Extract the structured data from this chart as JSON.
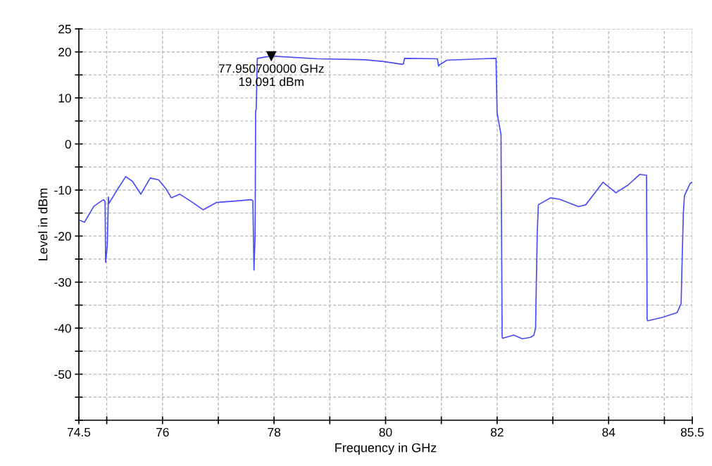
{
  "chart_data": {
    "type": "line",
    "xlabel": "Frequency in GHz",
    "ylabel": "Level in dBm",
    "x": [
      74.5,
      74.6,
      74.77,
      74.94,
      74.97,
      74.98,
      75.01,
      75.03,
      75.04,
      75.2,
      75.34,
      75.46,
      75.61,
      75.78,
      75.93,
      76.06,
      76.16,
      76.31,
      76.54,
      76.73,
      76.97,
      77.3,
      77.59,
      77.62,
      77.64,
      77.66,
      77.67,
      77.68,
      77.7,
      77.9507,
      78.78,
      79.63,
      79.96,
      80.3,
      80.32,
      80.34,
      80.93,
      80.95,
      80.97,
      81.1,
      81.73,
      81.98,
      82.0,
      82.07,
      82.09,
      82.1,
      82.3,
      82.45,
      82.6,
      82.66,
      82.69,
      82.7,
      82.72,
      82.74,
      82.96,
      83.12,
      83.46,
      83.59,
      83.9,
      84.13,
      84.35,
      84.56,
      84.68,
      84.69,
      84.7,
      84.98,
      85.23,
      85.3,
      85.32,
      85.34,
      85.36,
      85.46,
      85.5
    ],
    "series": [
      {
        "color": "#4a4cf5",
        "values": [
          -16.5,
          -17,
          -13.5,
          -12.1,
          -12.5,
          -25.7,
          -22,
          -11.5,
          -12.9,
          -9.7,
          -7.1,
          -8.1,
          -10.9,
          -7.4,
          -7.8,
          -9.7,
          -11.7,
          -10.9,
          -12.7,
          -14.3,
          -12.7,
          -12.4,
          -12.1,
          -12.3,
          -27.4,
          -20,
          7.2,
          7.5,
          18.6,
          19.091,
          18.5,
          18.3,
          17.9,
          17.3,
          17.4,
          18.6,
          18.5,
          16.9,
          17.2,
          18.2,
          18.5,
          18.6,
          6.7,
          2.1,
          -41.9,
          -42.2,
          -41.5,
          -42.3,
          -42,
          -41.5,
          -40,
          -32.6,
          -19.3,
          -13.2,
          -11.7,
          -12,
          -13.6,
          -13.2,
          -8.3,
          -10.6,
          -8.9,
          -6.6,
          -6.8,
          -38.1,
          -38.4,
          -37.6,
          -36.6,
          -34.6,
          -24.3,
          -15,
          -11.2,
          -8.6,
          -8.3
        ]
      }
    ],
    "xlim": [
      74.5,
      85.5
    ],
    "xticks": [
      74.5,
      {
        "value": 75,
        "label": null
      },
      76,
      {
        "value": 77,
        "label": null
      },
      78,
      {
        "value": 79,
        "label": null
      },
      80,
      {
        "value": 81,
        "label": null
      },
      82,
      {
        "value": 83,
        "label": null
      },
      84,
      {
        "value": 85,
        "label": null
      },
      85.5
    ],
    "ylim": [
      -60,
      25
    ],
    "yticks": [
      {
        "value": -60,
        "label": null
      },
      {
        "value": -55,
        "label": null
      },
      -50,
      {
        "value": -45,
        "label": null
      },
      -40,
      {
        "value": -35,
        "label": null
      },
      -30,
      {
        "value": -25,
        "label": null
      },
      -20,
      {
        "value": -15,
        "label": null
      },
      -10,
      {
        "value": -5,
        "label": null
      },
      0,
      {
        "value": 5,
        "label": null
      },
      10,
      {
        "value": 15,
        "label": null
      },
      20,
      25
    ],
    "grid": true,
    "legend": false,
    "marker": "none",
    "line_style": "solid",
    "annotations": [
      {
        "text": "77.950700000 GHz\n19.091 dBm",
        "x": 77.9507,
        "y": 19.091
      }
    ]
  }
}
